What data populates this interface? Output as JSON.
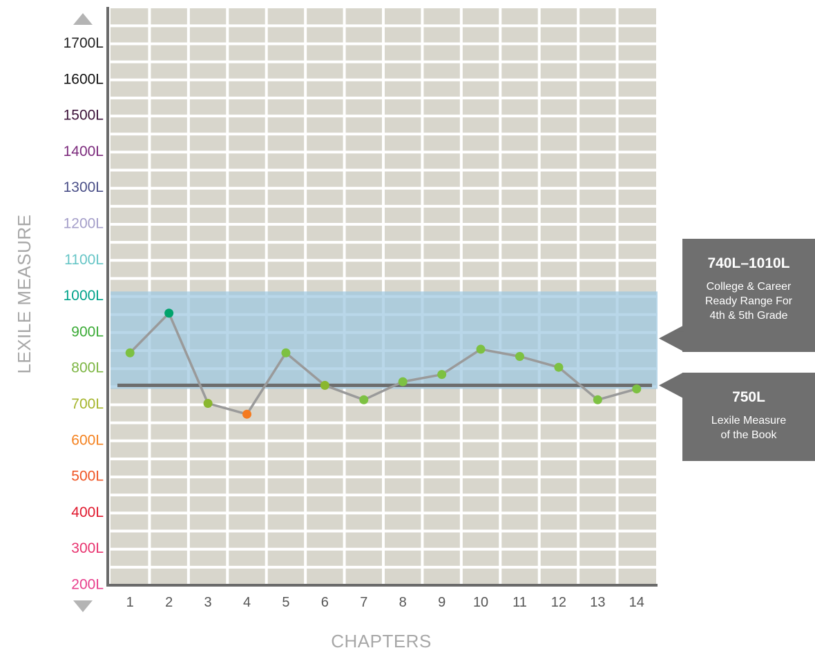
{
  "chart_data": {
    "type": "line",
    "ylabel": "LEXILE MEASURE",
    "xlabel": "CHAPTERS",
    "ylim": [
      180,
      1880
    ],
    "yticks": [
      {
        "label": "200L",
        "value": 200,
        "color": "#e83e8c"
      },
      {
        "label": "300L",
        "value": 300,
        "color": "#e8336f"
      },
      {
        "label": "400L",
        "value": 400,
        "color": "#e0182d"
      },
      {
        "label": "500L",
        "value": 500,
        "color": "#ef5423"
      },
      {
        "label": "600L",
        "value": 600,
        "color": "#f48220"
      },
      {
        "label": "700L",
        "value": 700,
        "color": "#a5b52b"
      },
      {
        "label": "800L",
        "value": 800,
        "color": "#7cb542"
      },
      {
        "label": "900L",
        "value": 900,
        "color": "#3aaa35"
      },
      {
        "label": "1000L",
        "value": 1000,
        "color": "#00a28a"
      },
      {
        "label": "1100L",
        "value": 1100,
        "color": "#66c5c6"
      },
      {
        "label": "1200L",
        "value": 1200,
        "color": "#a49ec9"
      },
      {
        "label": "1300L",
        "value": 1300,
        "color": "#4a4f88"
      },
      {
        "label": "1400L",
        "value": 1400,
        "color": "#7b2a7c"
      },
      {
        "label": "1500L",
        "value": 1500,
        "color": "#3b1138"
      },
      {
        "label": "1600L",
        "value": 1600,
        "color": "#111111"
      },
      {
        "label": "1700L",
        "value": 1700,
        "color": "#222222"
      }
    ],
    "categories": [
      "1",
      "2",
      "3",
      "4",
      "5",
      "6",
      "7",
      "8",
      "9",
      "10",
      "11",
      "12",
      "13",
      "14"
    ],
    "series": [
      {
        "values": [
          840,
          950,
          700,
          670,
          840,
          750,
          710,
          760,
          780,
          850,
          830,
          800,
          710,
          740
        ],
        "point_colors": [
          "#7dc142",
          "#00a36c",
          "#8ab72f",
          "#f47a20",
          "#7dc142",
          "#8ab72f",
          "#7dc142",
          "#7dc142",
          "#7dc142",
          "#7dc142",
          "#7dc142",
          "#7dc142",
          "#7dc142",
          "#7dc142"
        ],
        "line_color": "#9a9a9a"
      }
    ],
    "reference_line": {
      "value": 750,
      "color": "#6d6d6d"
    },
    "range_band": {
      "from": 740,
      "to": 1010,
      "color": "#9ec8e0"
    },
    "grid": true,
    "callouts": [
      {
        "heading": "740L–1010L",
        "lines": [
          "College & Career",
          "Ready Range For",
          "4th & 5th Grade"
        ],
        "points_to": 880
      },
      {
        "heading": "750L",
        "lines": [
          "Lexile Measure",
          "of the Book"
        ],
        "points_to": 750
      }
    ]
  }
}
